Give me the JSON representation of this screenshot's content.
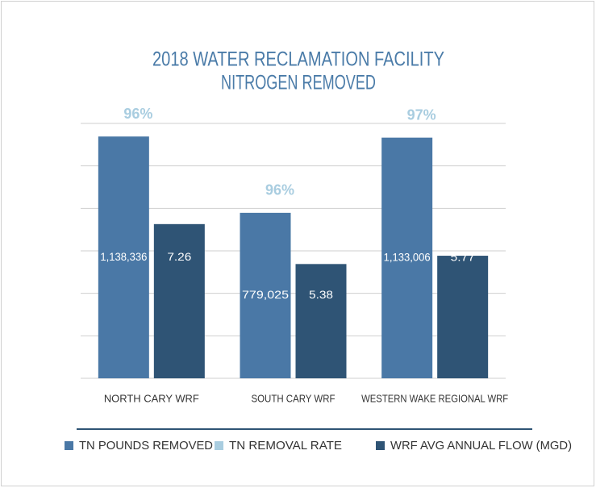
{
  "chart_data": {
    "type": "bar",
    "title": [
      "2018 WATER RECLAMATION FACILITY",
      "NITROGEN REMOVED"
    ],
    "categories": [
      "NORTH CARY WRF",
      "SOUTH CARY WRF",
      "WESTERN WAKE REGIONAL WRF"
    ],
    "series": [
      {
        "name": "TN POUNDS REMOVED",
        "color": "#4a78a6",
        "values": [
          1138336,
          779025,
          1133006
        ],
        "value_labels": [
          "1,138,336",
          "779,025",
          "1,133,006"
        ]
      },
      {
        "name": "TN REMOVAL RATE",
        "color": "#a9cde0",
        "values": [
          96,
          96,
          97
        ],
        "value_labels": [
          "96%",
          "96%",
          "97%"
        ],
        "display": "label"
      },
      {
        "name": "WRF AVG ANNUAL FLOW (MGD)",
        "color": "#2f5475",
        "values": [
          7.26,
          5.38,
          5.77
        ],
        "axis": "y2"
      }
    ],
    "ylim": [
      0,
      1200000
    ],
    "yticks": [
      0,
      200000,
      400000,
      600000,
      800000,
      1000000,
      1200000
    ],
    "y2lim": [
      0,
      12
    ],
    "grid": true,
    "legend": "bottom"
  }
}
